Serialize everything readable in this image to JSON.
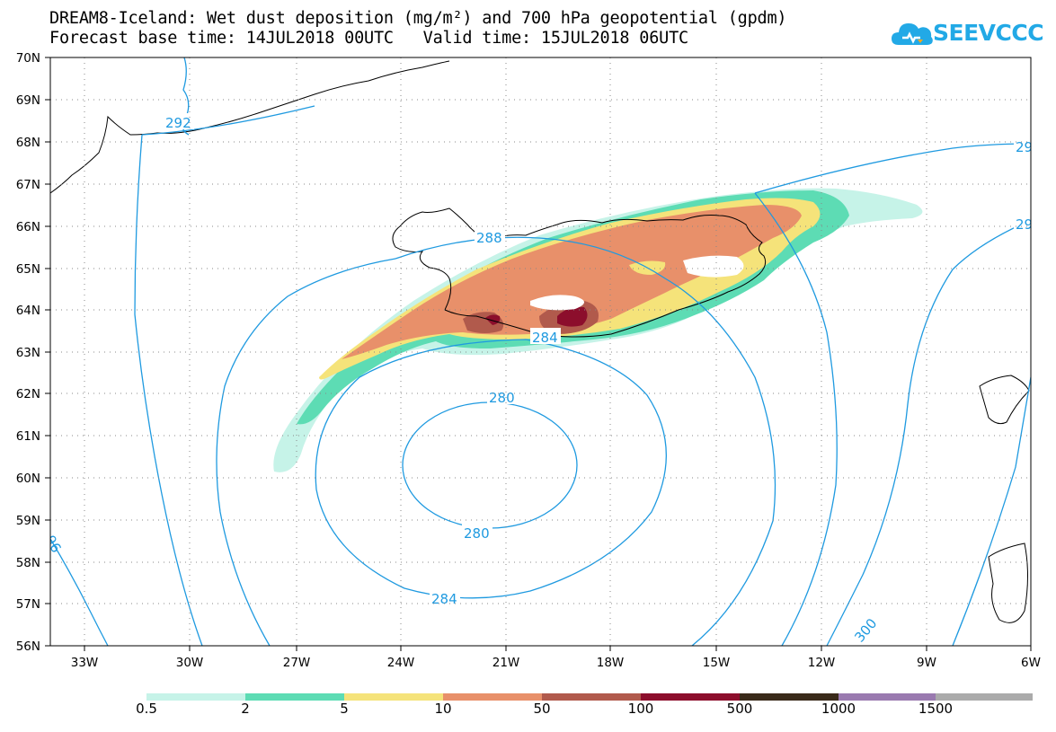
{
  "title": {
    "line1": "DREAM8-Iceland: Wet dust deposition (mg/m²) and 700 hPa geopotential (gpdm)",
    "line2_left": "Forecast base time: 14JUL2018 00UTC",
    "line2_right": "Valid time: 15JUL2018 06UTC"
  },
  "logo": {
    "text": "SEEVCCC",
    "icon": "cloud-icon",
    "color": "#22a9e6"
  },
  "map": {
    "lat_labels": [
      "70N",
      "69N",
      "68N",
      "67N",
      "66N",
      "65N",
      "64N",
      "63N",
      "62N",
      "61N",
      "60N",
      "59N",
      "58N",
      "57N",
      "56N"
    ],
    "lon_labels": [
      "33W",
      "30W",
      "27W",
      "24W",
      "21W",
      "18W",
      "15W",
      "12W",
      "9W",
      "6W"
    ],
    "contour_color": "#1f9ae0",
    "contour_labels": [
      "292",
      "288",
      "284",
      "280",
      "280",
      "284",
      "300",
      "29",
      "29",
      "96"
    ]
  },
  "legend": {
    "labels": [
      "0.5",
      "2",
      "5",
      "10",
      "50",
      "100",
      "500",
      "1000",
      "1500"
    ],
    "colors": [
      "#c6f3e8",
      "#5ddcb4",
      "#f5e37a",
      "#e8906a",
      "#b15a4c",
      "#8c0e2c",
      "#3a2a1a",
      "#9a7ab0",
      "#ababab"
    ]
  }
}
